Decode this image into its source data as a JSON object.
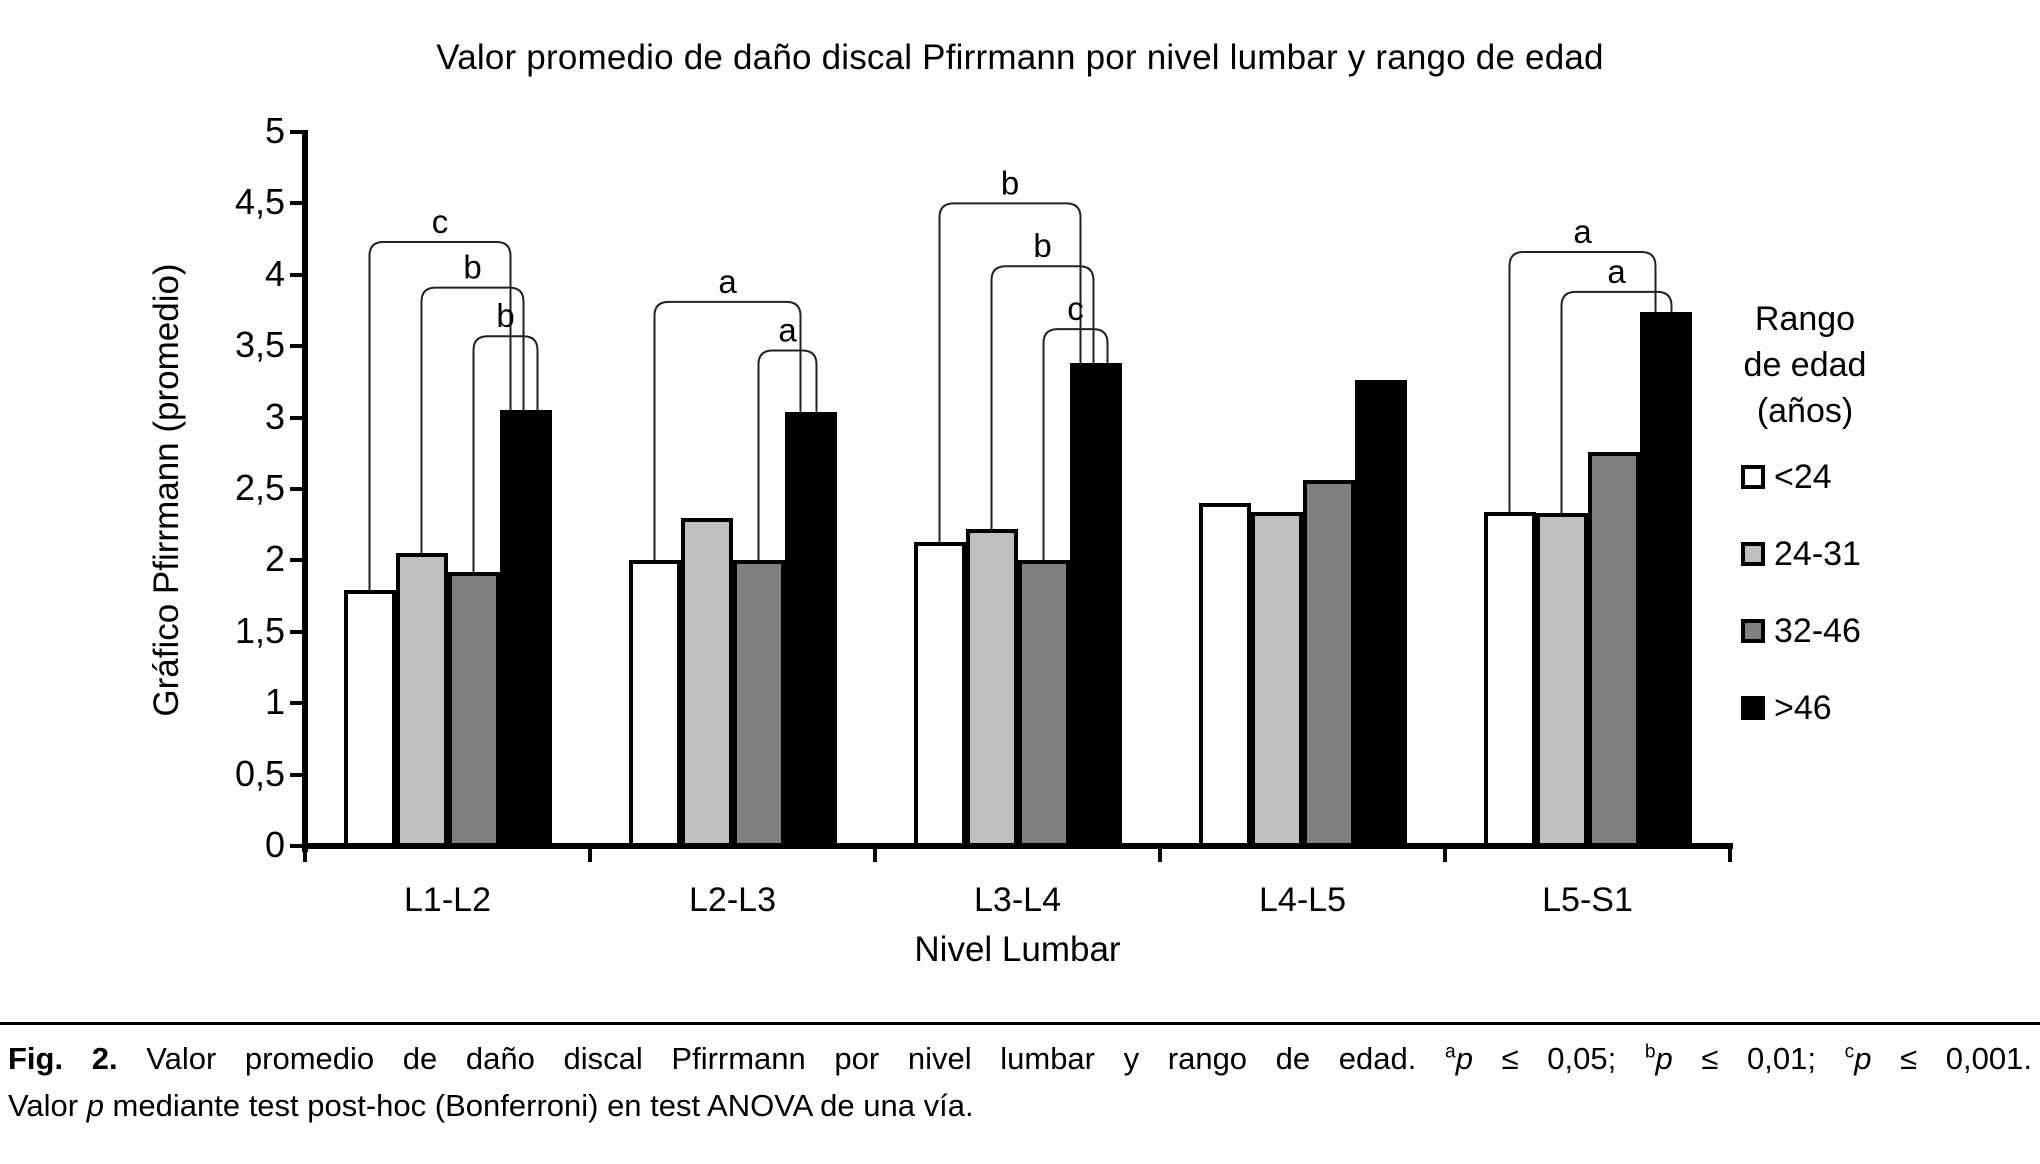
{
  "figure": {
    "title": "Valor promedio de daño discal Pfirrmann por nivel lumbar y rango de edad",
    "y_axis_title": "Gráfico Pfirrmann (promedio)",
    "x_axis_title": "Nivel Lumbar"
  },
  "legend": {
    "title_lines": [
      "Rango",
      "de edad",
      "(años)"
    ]
  },
  "caption": {
    "line1_segments": [
      {
        "text": "Fig. 2.",
        "style": "bold"
      },
      {
        "text": " Valor promedio de daño discal Pfirrmann por nivel lumbar y rango de edad. ",
        "style": "normal"
      },
      {
        "text": "a",
        "style": "sup"
      },
      {
        "text": "p",
        "style": "italic"
      },
      {
        "text": " ≤ 0,05; ",
        "style": "normal"
      },
      {
        "text": "b",
        "style": "sup"
      },
      {
        "text": "p",
        "style": "italic"
      },
      {
        "text": " ≤ 0,01; ",
        "style": "normal"
      },
      {
        "text": "c",
        "style": "sup"
      },
      {
        "text": "p",
        "style": "italic"
      },
      {
        "text": " ≤ 0,001.",
        "style": "normal"
      }
    ],
    "line2_segments": [
      {
        "text": "Valor ",
        "style": "normal"
      },
      {
        "text": "p",
        "style": "italic"
      },
      {
        "text": " mediante test post-hoc (Bonferroni) en test ANOVA de una vía.",
        "style": "normal"
      }
    ]
  },
  "chart_data": {
    "type": "bar",
    "title": "Valor promedio de daño discal Pfirrmann por nivel lumbar y rango de edad",
    "xlabel": "Nivel Lumbar",
    "ylabel": "Gráfico Pfirrmann (promedio)",
    "ylim": [
      0,
      5
    ],
    "ytick_step": 0.5,
    "ytick_labels": [
      "0",
      "0,5",
      "1",
      "1,5",
      "2",
      "2,5",
      "3",
      "3,5",
      "4",
      "4,5",
      "5"
    ],
    "grid": false,
    "legend_position": "right",
    "categories": [
      "L1-L2",
      "L2-L3",
      "L3-L4",
      "L4-L5",
      "L5-S1"
    ],
    "series": [
      {
        "name": "<24",
        "color": "#ffffff",
        "values": [
          1.79,
          2.0,
          2.13,
          2.4,
          2.34
        ]
      },
      {
        "name": "24-31",
        "color": "#bfbfbf",
        "values": [
          2.05,
          2.3,
          2.22,
          2.34,
          2.33
        ]
      },
      {
        "name": "32-46",
        "color": "#7f7f7f",
        "values": [
          1.92,
          2.0,
          2.0,
          2.56,
          2.76
        ]
      },
      {
        "name": ">46",
        "color": "#000000",
        "values": [
          3.05,
          3.04,
          3.38,
          3.26,
          3.74
        ]
      }
    ],
    "significance_brackets": [
      {
        "group": "L1-L2",
        "label": "c",
        "from": "<24",
        "to": ">46",
        "top": 4.23
      },
      {
        "group": "L1-L2",
        "label": "b",
        "from": "24-31",
        "to": ">46",
        "top": 3.91
      },
      {
        "group": "L1-L2",
        "label": "b",
        "from": "32-46",
        "to": ">46",
        "top": 3.57
      },
      {
        "group": "L2-L3",
        "label": "a",
        "from": "<24",
        "to": ">46",
        "top": 3.81
      },
      {
        "group": "L2-L3",
        "label": "a",
        "from": "32-46",
        "to": ">46",
        "top": 3.47
      },
      {
        "group": "L3-L4",
        "label": "b",
        "from": "<24",
        "to": ">46",
        "top": 4.5
      },
      {
        "group": "L3-L4",
        "label": "b",
        "from": "24-31",
        "to": ">46",
        "top": 4.06
      },
      {
        "group": "L3-L4",
        "label": "c",
        "from": "32-46",
        "to": ">46",
        "top": 3.62
      },
      {
        "group": "L5-S1",
        "label": "a",
        "from": "<24",
        "to": ">46",
        "top": 4.16
      },
      {
        "group": "L5-S1",
        "label": "a",
        "from": "24-31",
        "to": ">46",
        "top": 3.88
      }
    ],
    "colors": {
      "axis": "#000000",
      "bar_outline": "#000000",
      "bracket_line": "#222222"
    }
  }
}
